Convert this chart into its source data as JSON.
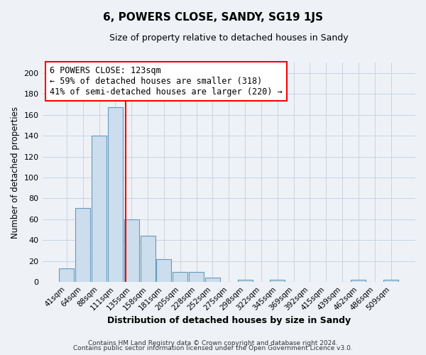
{
  "title": "6, POWERS CLOSE, SANDY, SG19 1JS",
  "subtitle": "Size of property relative to detached houses in Sandy",
  "xlabel": "Distribution of detached houses by size in Sandy",
  "ylabel": "Number of detached properties",
  "categories": [
    "41sqm",
    "64sqm",
    "88sqm",
    "111sqm",
    "135sqm",
    "158sqm",
    "181sqm",
    "205sqm",
    "228sqm",
    "252sqm",
    "275sqm",
    "298sqm",
    "322sqm",
    "345sqm",
    "369sqm",
    "392sqm",
    "415sqm",
    "439sqm",
    "462sqm",
    "486sqm",
    "509sqm"
  ],
  "values": [
    13,
    71,
    140,
    167,
    60,
    44,
    22,
    10,
    10,
    4,
    0,
    2,
    0,
    2,
    0,
    0,
    0,
    0,
    2,
    0,
    2
  ],
  "bar_color": "#ccdded",
  "bar_edge_color": "#6699bb",
  "bar_linewidth": 0.8,
  "annotation_line1": "6 POWERS CLOSE: 123sqm",
  "annotation_line2": "← 59% of detached houses are smaller (318)",
  "annotation_line3": "41% of semi-detached houses are larger (220) →",
  "ylim": [
    0,
    210
  ],
  "yticks": [
    0,
    20,
    40,
    60,
    80,
    100,
    120,
    140,
    160,
    180,
    200
  ],
  "grid_color": "#c8d4e0",
  "background_color": "#eef2f7",
  "footer_line1": "Contains HM Land Registry data © Crown copyright and database right 2024.",
  "footer_line2": "Contains public sector information licensed under the Open Government Licence v3.0."
}
